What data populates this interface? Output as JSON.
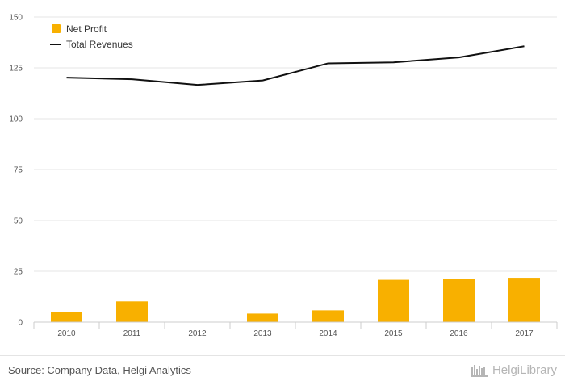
{
  "chart_data": {
    "type": "bar",
    "categories": [
      "2010",
      "2011",
      "2012",
      "2013",
      "2014",
      "2015",
      "2016",
      "2017"
    ],
    "series": [
      {
        "name": "Net Profit",
        "type": "bar",
        "color": "#f8b000",
        "values": [
          5.0,
          10.2,
          0.0,
          4.2,
          5.8,
          20.8,
          21.3,
          21.8
        ]
      },
      {
        "name": "Total Revenues",
        "type": "line",
        "color": "#111111",
        "values": [
          120.2,
          119.4,
          116.6,
          118.8,
          127.2,
          127.7,
          130.1,
          135.6
        ]
      }
    ],
    "title": "",
    "xlabel": "",
    "ylabel": "",
    "ylim": [
      0,
      150
    ],
    "yticks": [
      "150",
      "125",
      "100",
      "75",
      "50",
      "25",
      "0"
    ],
    "grid": true,
    "legend_placement": "top-left"
  },
  "footer": {
    "source": "Source: Company Data, Helgi Analytics",
    "logo_text": "HelgiLibrary"
  },
  "colors": {
    "grid": "#e6e6e6",
    "axis": "#cccccc"
  }
}
